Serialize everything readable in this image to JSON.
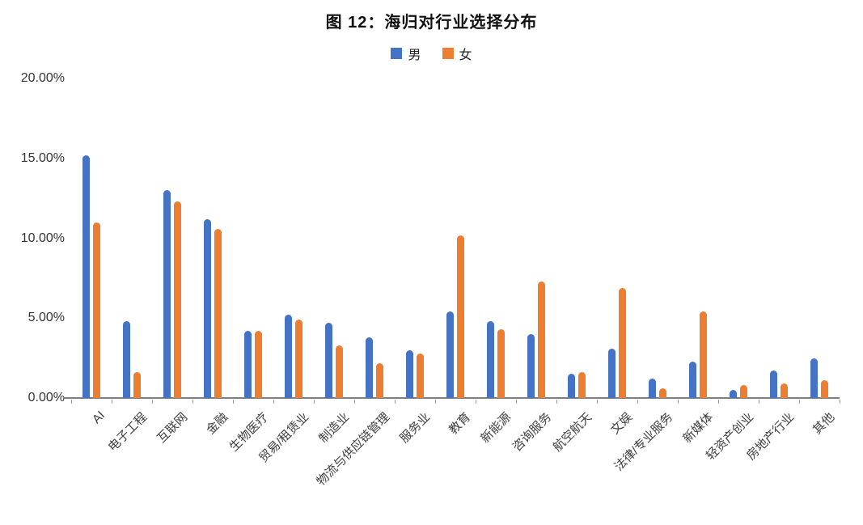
{
  "title": "图 12：海归对行业选择分布",
  "legend": [
    {
      "label": "男",
      "color": "#4472C4"
    },
    {
      "label": "女",
      "color": "#ED7D31"
    }
  ],
  "axis_color": "#7f7f7f",
  "chart_data": {
    "type": "bar",
    "title": "图 12：海归对行业选择分布",
    "xlabel": "",
    "ylabel": "",
    "ylim": [
      0,
      20
    ],
    "grid": false,
    "legend_position": "top",
    "y_tick_labels": [
      "20.00%",
      "15.00%",
      "10.00%",
      "5.00%",
      "0.00%"
    ],
    "categories": [
      "AI",
      "电子工程",
      "互联网",
      "金融",
      "生物医疗",
      "贸易/租赁业",
      "制造业",
      "物流与供应链管理",
      "服务业",
      "教育",
      "新能源",
      "咨询服务",
      "航空航天",
      "文娱",
      "法律/专业服务",
      "新媒体",
      "轻资产创业",
      "房地产行业",
      "其他"
    ],
    "series": [
      {
        "name": "男",
        "color": "#4472C4",
        "values": [
          15.2,
          4.8,
          13.0,
          11.2,
          4.2,
          5.2,
          4.7,
          3.8,
          3.0,
          5.4,
          4.8,
          4.0,
          1.5,
          3.1,
          1.2,
          2.3,
          0.5,
          1.7,
          2.5
        ]
      },
      {
        "name": "女",
        "color": "#ED7D31",
        "values": [
          11.0,
          1.6,
          12.3,
          10.6,
          4.2,
          4.9,
          3.3,
          2.2,
          2.8,
          10.2,
          4.3,
          7.3,
          1.6,
          6.9,
          0.6,
          5.4,
          0.8,
          0.9,
          1.1
        ]
      }
    ]
  }
}
